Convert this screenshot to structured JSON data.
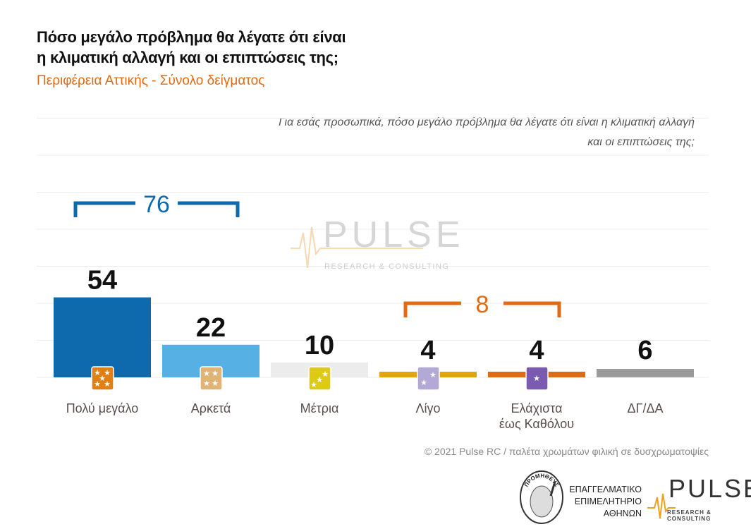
{
  "header": {
    "title_line1": "Πόσο μεγάλο πρόβλημα θα λέγατε ότι είναι",
    "title_line2": "η κλιματική αλλαγή και οι επιπτώσεις της;",
    "subtitle": "Περιφέρεια Αττικής - Σύνολο δείγματος",
    "question_line1": "Για εσάς προσωπικά, πόσο μεγάλο πρόβλημα θα λέγατε ότι είναι η κλιματική αλλαγή",
    "question_line2": "και οι επιπτώσεις της;"
  },
  "chart_data": {
    "type": "bar",
    "categories": [
      "Πολύ μεγάλο",
      "Αρκετά",
      "Μέτρια",
      "Λίγο",
      "Ελάχιστα έως Καθόλου",
      "ΔΓ/ΔΑ"
    ],
    "category_lines": [
      [
        "Πολύ μεγάλο"
      ],
      [
        "Αρκετά"
      ],
      [
        "Μέτρια"
      ],
      [
        "Λίγο"
      ],
      [
        "Ελάχιστα",
        "έως Καθόλου"
      ],
      [
        "ΔΓ/ΔΑ"
      ]
    ],
    "values": [
      54,
      22,
      10,
      4,
      4,
      6
    ],
    "value_labels": [
      "54",
      "22",
      "10",
      "4",
      "4",
      "6"
    ],
    "colors": [
      "#0f6aad",
      "#56b0e4",
      "#ececec",
      "#e3a412",
      "#e06b12",
      "#9b9b9b"
    ],
    "icons": [
      {
        "name": "five-stars-icon",
        "color": "#e07f14",
        "stars": 5
      },
      {
        "name": "four-stars-icon",
        "color": "#e0b477",
        "stars": 4
      },
      {
        "name": "three-stars-icon",
        "color": "#dccb12",
        "stars": 3
      },
      {
        "name": "two-stars-icon",
        "color": "#b3a9d6",
        "stars": 2
      },
      {
        "name": "one-star-icon",
        "color": "#7a5bb0",
        "stars": 1
      }
    ],
    "brackets": [
      {
        "label": "76",
        "from": 0,
        "to": 1,
        "color": "#0f6aad"
      },
      {
        "label": "8",
        "from": 3,
        "to": 4,
        "color": "#e06b12"
      }
    ],
    "grid": true,
    "ylim": [
      0,
      70
    ]
  },
  "watermark": {
    "word": "PULSE",
    "sub": "RESEARCH & CONSULTING"
  },
  "footer": {
    "copyright": "© 2021 Pulse RC  /  παλέτα χρωμάτων φιλική σε δυσχρωματοψίες",
    "eea_line1": "ΕΠΑΓΓΕΛΜΑΤΙΚΟ",
    "eea_line2": "ΕΠΙΜΕΛΗΤΗΡΙΟ",
    "eea_line3": "ΑΘΗΝΩΝ",
    "eea_seal_text": "ΠΡΟΜΗΘΕΥΣ",
    "pulse_word": "PULSE",
    "pulse_sub": "RESEARCH & CONSULTING"
  }
}
